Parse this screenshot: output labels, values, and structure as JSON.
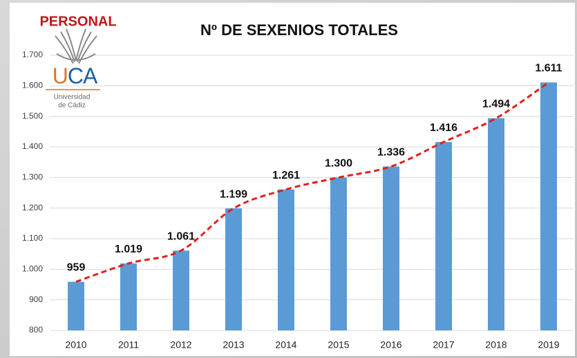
{
  "chart_data": {
    "type": "bar",
    "title": "Nº DE SEXENIOS TOTALES",
    "annotations": [
      "PERSONAL"
    ],
    "logo": {
      "text": "UCA",
      "lines": [
        "Universidad",
        "de Cádiz"
      ]
    },
    "categories": [
      "2010",
      "2011",
      "2012",
      "2013",
      "2014",
      "2015",
      "2016",
      "2017",
      "2018",
      "2019"
    ],
    "values": [
      959,
      1019,
      1061,
      1199,
      1261,
      1300,
      1336,
      1416,
      1494,
      1611
    ],
    "value_labels": [
      "959",
      "1.019",
      "1.061",
      "1.199",
      "1.261",
      "1.300",
      "1.336",
      "1.416",
      "1.494",
      "1.611"
    ],
    "color": "#5b9bd5",
    "trend_color": "#e3201b",
    "ylim": [
      800,
      1700
    ],
    "yticks": [
      800,
      900,
      {
        "value": 1000,
        "label": "1.000"
      },
      {
        "value": 1100,
        "label": "1.100"
      },
      {
        "value": 1200,
        "label": "1.200"
      },
      {
        "value": 1300,
        "label": "1.300"
      },
      {
        "value": 1400,
        "label": "1.400"
      },
      {
        "value": 1500,
        "label": "1.500"
      },
      {
        "value": 1600,
        "label": "1.600"
      },
      {
        "value": 1700,
        "label": "1.700"
      }
    ],
    "grid": true
  }
}
